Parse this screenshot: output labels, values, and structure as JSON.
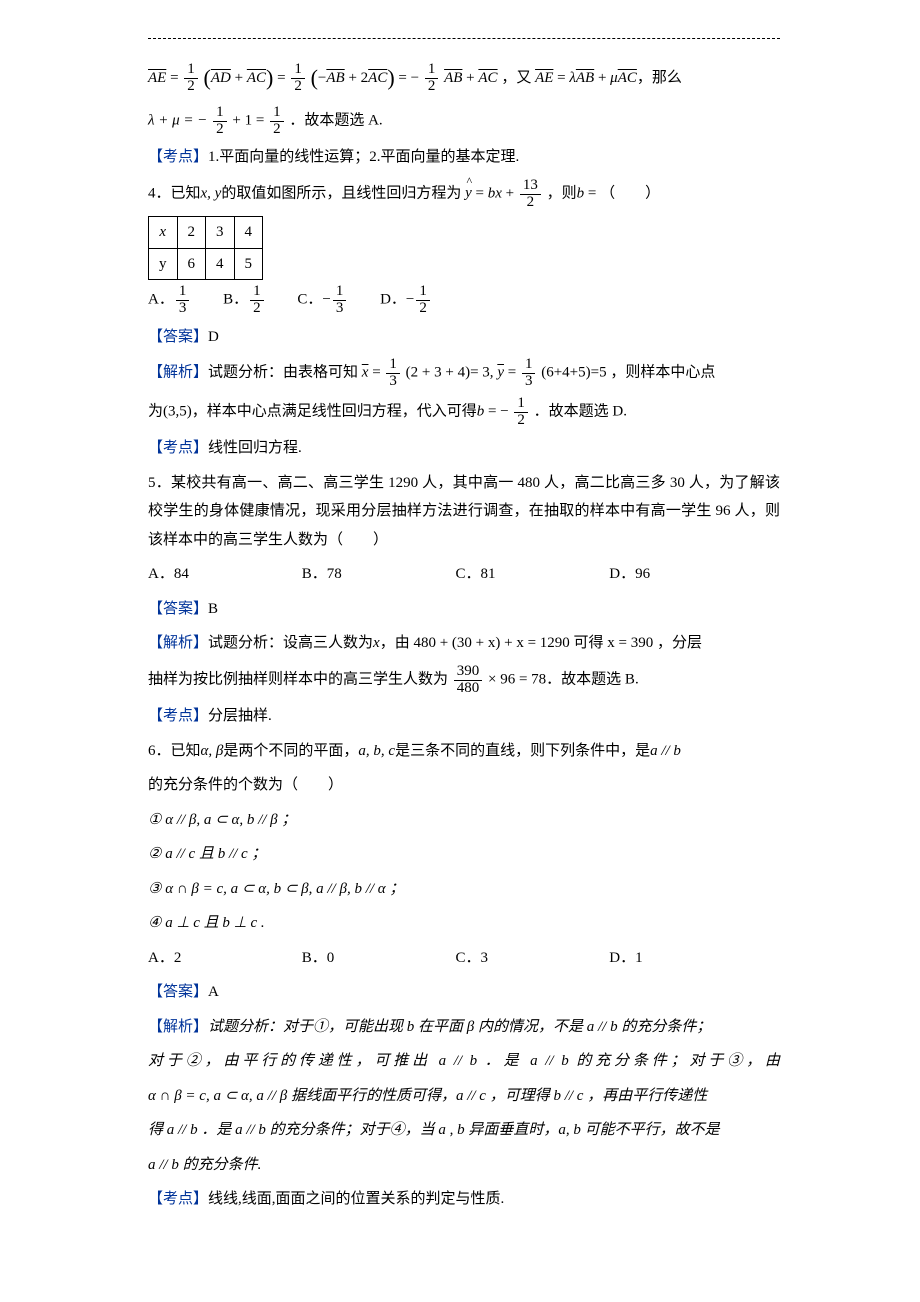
{
  "colors": {
    "accent": "#003399",
    "text": "#000000",
    "bg": "#ffffff"
  },
  "font": {
    "body_pt": 15,
    "math_pt": 15
  },
  "eq1": {
    "lhs": "AE",
    "step1": {
      "coef_num": "1",
      "coef_den": "2",
      "a": "AD",
      "b": "AC"
    },
    "step2": {
      "coef_num": "1",
      "coef_den": "2",
      "a_sign": "−",
      "a": "AB",
      "b_coef": "2",
      "b": "AC"
    },
    "result": {
      "a_sign": "−",
      "a_num": "1",
      "a_den": "2",
      "a": "AB",
      "b": "AC"
    },
    "given": {
      "lhs": "AE",
      "a_coef": "λ",
      "a": "AB",
      "b_coef": "μ",
      "b": "AC"
    },
    "tail": "，那么"
  },
  "eq2": {
    "lhs": "λ + μ = −",
    "f1_num": "1",
    "f1_den": "2",
    "mid": " + 1 = ",
    "f2_num": "1",
    "f2_den": "2",
    "tail": "．故本题选 A."
  },
  "kd1_label": "【考点】",
  "kd1": "1.平面向量的线性运算；2.平面向量的基本定理.",
  "q4": {
    "stem_a": "4．已知",
    "vars": "x, y",
    "stem_b": "的取值如图所示，且线性回归方程为",
    "eq": {
      "y": "y",
      "b": "b",
      "x": "x",
      "c_num": "13",
      "c_den": "2"
    },
    "stem_c": "，则",
    "stem_d": " = （　　）",
    "table": {
      "head": "x",
      "xs": [
        "2",
        "3",
        "4"
      ],
      "yhead": "y",
      "ys": [
        "6",
        "4",
        "5"
      ]
    },
    "opts": {
      "A_num": "1",
      "A_den": "3",
      "B_num": "1",
      "B_den": "2",
      "C_num": "1",
      "C_den": "3",
      "D_num": "1",
      "D_den": "2"
    }
  },
  "ans_label": "【答案】",
  "ans4": "D",
  "ana_label": "【解析】",
  "ana4": {
    "pre": "试题分析：由表格可知",
    "xbar_f_num": "1",
    "xbar_f_den": "3",
    "xsum": "(2 + 3 + 4)",
    "xval": "= 3,",
    "ybar_f_num": "1",
    "ybar_f_den": "3",
    "ysum": "(6+4+5)",
    "yval": "=5",
    "post": "，则样本中心点",
    "line2a": "为(3,5)，样本中心点满足线性回归方程，代入可得",
    "b_eq_num": "1",
    "b_eq_den": "2",
    "line2b": "．故本题选 D."
  },
  "kd4_label": "【考点】",
  "kd4": "线性回归方程.",
  "q5": {
    "stem": "5．某校共有高一、高二、高三学生 1290 人，其中高一 480 人，高二比高三多 30 人，为了解该校学生的身体健康情况，现采用分层抽样方法进行调查，在抽取的样本中有高一学生 96 人，则该样本中的高三学生人数为（　　）",
    "opts": {
      "A": "84",
      "B": "78",
      "C": "81",
      "D": "96"
    }
  },
  "ans5": "B",
  "ana5": {
    "pre": "试题分析：设高三人数为",
    "var": "x",
    "mid": "，由 480 + (30 + x) + x = 1290 可得 x = 390 ，分层",
    "line2a": "抽样为按比例抽样则样本中的高三学生人数为",
    "f_num": "390",
    "f_den": "480",
    "line2b": "× 96 = 78．故本题选 B."
  },
  "kd5_label": "【考点】",
  "kd5": "分层抽样.",
  "q6": {
    "stem_a": "6．已知",
    "ab": "α, β",
    "stem_b": "是两个不同的平面，",
    "abc": "a, b, c",
    "stem_c": "是三条不同的直线，则下列条件中，是",
    "cond": "a // b",
    "stem_d": "的充分条件的个数为（　　）",
    "items": {
      "i1": "① α // β, a ⊂ α, b // β ；",
      "i2": "② a // c 且 b // c ；",
      "i3": "③ α ∩ β = c, a ⊂ α, b ⊂ β, a // β, b // α ；",
      "i4": "④ a ⊥ c 且 b ⊥ c ."
    },
    "opts": {
      "A": "2",
      "B": "0",
      "C": "3",
      "D": "1"
    }
  },
  "ans6": "A",
  "ana6": {
    "l1": "试题分析：对于①，可能出现 b 在平面 β 内的情况，不是 a // b  的充分条件；",
    "l2": "对于②，由平行的传递性，可推出 a // b ．是 a // b 的充分条件；对于③，由",
    "l3": "α ∩ β = c, a ⊂ α, a // β 据线面平行的性质可得，a // c ，可理得 b // c ，再由平行传递性",
    "l4": "得 a // b ．是 a // b  的充分条件；对于④，当 a , b 异面垂直时，a, b 可能不平行，故不是",
    "l5": "a // b 的充分条件."
  },
  "kd6_label": "【考点】",
  "kd6": "线线,线面,面面之间的位置关系的判定与性质."
}
